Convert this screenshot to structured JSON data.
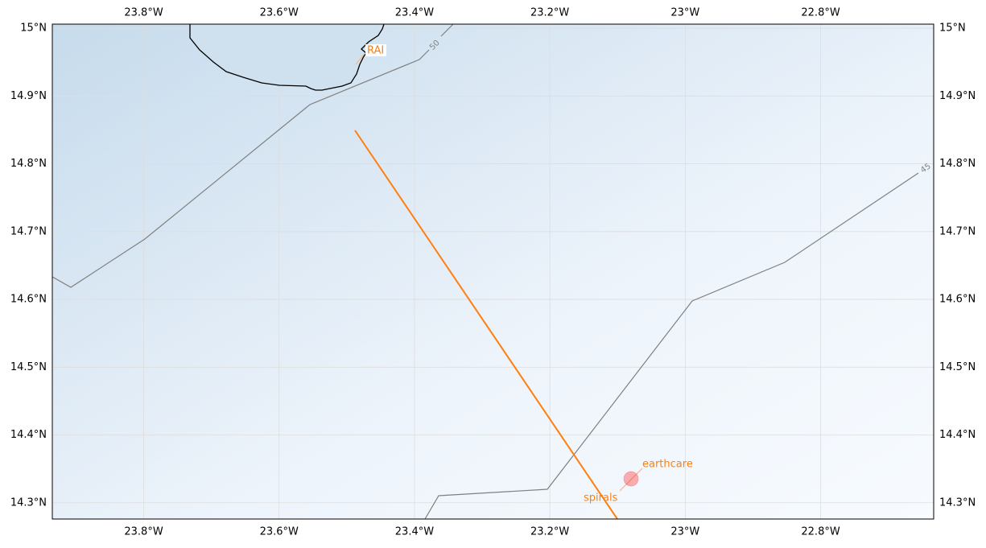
{
  "map": {
    "xlim": [
      -23.935,
      -22.633
    ],
    "ylim": [
      14.276,
      15.006
    ],
    "xticks": [
      {
        "value": -23.8,
        "label": "23.8°W"
      },
      {
        "value": -23.6,
        "label": "23.6°W"
      },
      {
        "value": -23.4,
        "label": "23.4°W"
      },
      {
        "value": -23.2,
        "label": "23.2°W"
      },
      {
        "value": -23.0,
        "label": "23°W"
      },
      {
        "value": -22.8,
        "label": "22.8°W"
      }
    ],
    "yticks": [
      {
        "value": 14.3,
        "label": "14.3°N"
      },
      {
        "value": 14.4,
        "label": "14.4°N"
      },
      {
        "value": 14.5,
        "label": "14.5°N"
      },
      {
        "value": 14.6,
        "label": "14.6°N"
      },
      {
        "value": 14.7,
        "label": "14.7°N"
      },
      {
        "value": 14.8,
        "label": "14.8°N"
      },
      {
        "value": 14.9,
        "label": "14.9°N"
      },
      {
        "value": 15.0,
        "label": "15°N"
      }
    ],
    "grid": true,
    "contour_labels": [
      "50",
      "45"
    ],
    "annotations": [
      "RAI",
      "earthcare",
      "spirals"
    ]
  }
}
